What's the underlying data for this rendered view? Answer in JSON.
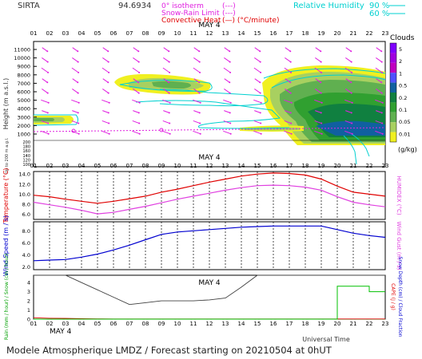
{
  "header": {
    "site": "SIRTA",
    "coord": "94.6934",
    "legend": [
      {
        "label": "0° isotherm",
        "sample": "(---)",
        "color": "#e020e0"
      },
      {
        "label": "Snow-Rain Limit",
        "sample": "(---)",
        "color": "#e020e0"
      },
      {
        "label": "Convective Heat",
        "sample": "(—)  (°C/minute)",
        "color": "#e00000"
      }
    ],
    "rh_label": "Relative Humidity",
    "rh_levels": [
      "90 %",
      "60 %"
    ],
    "rh_color": "#00d0d0"
  },
  "hours": [
    "01",
    "02",
    "03",
    "04",
    "05",
    "06",
    "07",
    "08",
    "09",
    "10",
    "11",
    "12",
    "13",
    "14",
    "15",
    "16",
    "17",
    "18",
    "19",
    "20",
    "21",
    "22",
    "23"
  ],
  "date_label": "MAY  4",
  "panel1": {
    "ylabel": "Height  (m a.s.l.)",
    "ylabel_low": "Up to 200 m a.g.l.",
    "yticks_high": [
      "11000",
      "10000",
      "9000",
      "8000",
      "7000",
      "6000",
      "5000",
      "4000",
      "3000",
      "2000",
      "1000"
    ],
    "yticks_low": [
      "200",
      "180",
      "160",
      "140",
      "120",
      "100"
    ],
    "clouds_title": "Clouds",
    "clouds_units": "(g/kg)",
    "cloud_scale": [
      "5",
      "2",
      "1",
      "0.5",
      "0.2",
      "0.1",
      "0.05",
      "0.01"
    ],
    "cloud_colors": [
      "#8000ff",
      "#a000e0",
      "#c000c0",
      "#5050ff",
      "#1060a0",
      "#108040",
      "#30a030",
      "#60b050",
      "#a8d060",
      "#f0f020"
    ]
  },
  "panel2": {
    "ylabel": "Temperature (°C)",
    "ylabel_right": "HUMIDEX (°C)",
    "yticks": [
      "14.0",
      "12.0",
      "10.0",
      "8.0",
      "6.0"
    ]
  },
  "panel3": {
    "ylabel": "Wind Speed (m / s)",
    "ylabel_right": "Wind Gust (m / s)",
    "yticks": [
      "8.0",
      "6.0",
      "4.0",
      "2.0"
    ]
  },
  "panel4": {
    "ylabel": "Rain (mm / hour) / Snow (cm / hour)",
    "ylabel_right1": "CAPE (J / g)",
    "ylabel_right2": "Snow Depth (cm) / Cloud Fraction",
    "yticks": [
      "4",
      "3",
      "2",
      "1",
      "0"
    ]
  },
  "x_title": "Universal Time",
  "footer": "Modele Atmospherique LMDZ / Forecast starting on 20210504 at 0hUT",
  "chart_data": [
    {
      "type": "line",
      "title": "Temperature / HUMIDEX",
      "x": [
        1,
        2,
        3,
        4,
        5,
        6,
        7,
        8,
        9,
        10,
        11,
        12,
        13,
        14,
        15,
        16,
        17,
        18,
        19,
        20,
        21,
        22,
        23
      ],
      "series": [
        {
          "name": "Temperature",
          "color": "#e00000",
          "values": [
            9.8,
            9.5,
            9.0,
            8.6,
            8.2,
            8.6,
            9.1,
            9.6,
            10.4,
            11.0,
            11.7,
            12.4,
            13.0,
            13.6,
            14.0,
            14.2,
            14.1,
            13.8,
            13.0,
            11.6,
            10.4,
            10.0,
            9.6
          ]
        },
        {
          "name": "HUMIDEX",
          "color": "#e040e0",
          "values": [
            8.4,
            7.9,
            7.4,
            6.8,
            6.1,
            6.4,
            7.0,
            7.6,
            8.3,
            9.0,
            9.6,
            10.2,
            10.8,
            11.3,
            11.7,
            11.8,
            11.7,
            11.4,
            10.8,
            9.5,
            8.4,
            7.9,
            7.5
          ]
        }
      ],
      "ylim": [
        5,
        14.5
      ]
    },
    {
      "type": "line",
      "title": "Wind Speed / Wind Gust",
      "x": [
        1,
        2,
        3,
        4,
        5,
        6,
        7,
        8,
        9,
        10,
        11,
        12,
        13,
        14,
        15,
        16,
        17,
        18,
        19,
        20,
        21,
        22,
        23
      ],
      "series": [
        {
          "name": "Wind Speed",
          "color": "#0000d0",
          "values": [
            3.0,
            3.1,
            3.2,
            3.6,
            4.1,
            4.8,
            5.6,
            6.5,
            7.4,
            7.8,
            8.0,
            8.2,
            8.4,
            8.6,
            8.7,
            8.8,
            8.8,
            8.8,
            8.8,
            8.2,
            7.6,
            7.2,
            6.9
          ]
        }
      ],
      "ylim": [
        1.5,
        9.5
      ]
    },
    {
      "type": "line",
      "title": "Rain / CAPE / Cloud Fraction",
      "x": [
        1,
        2,
        3,
        4,
        5,
        6,
        7,
        8,
        9,
        10,
        11,
        12,
        13,
        14,
        15,
        16,
        17,
        18,
        19,
        20,
        21,
        22,
        23
      ],
      "series": [
        {
          "name": "Rain",
          "color": "#00a000",
          "values": [
            0,
            0,
            0,
            0,
            0,
            0,
            0,
            0,
            0,
            0,
            0,
            0,
            0,
            0,
            0,
            0,
            0,
            0,
            0,
            0,
            0,
            0,
            0
          ]
        },
        {
          "name": "CAPE",
          "color": "#e00000",
          "values": [
            0.15,
            0.1,
            0.08,
            0.05,
            0.03,
            0.02,
            0.02,
            0.02,
            0.02,
            0.02,
            0.02,
            0.02,
            0.02,
            0.02,
            0.02,
            0.02,
            0.02,
            0.02,
            0.02,
            0.02,
            0.02,
            0.02,
            0.02
          ]
        },
        {
          "name": "Cloud Fraction",
          "color": "#404040",
          "values": [
            4.8,
            4.8,
            4.8,
            4.0,
            3.2,
            2.4,
            1.6,
            1.8,
            2.0,
            2.0,
            2.0,
            2.1,
            2.3,
            3.5,
            4.8,
            4.8,
            4.8,
            4.8,
            4.8,
            4.8,
            4.8,
            4.8,
            4.8
          ]
        },
        {
          "name": "Snow Depth",
          "color": "#00c000",
          "values": [
            0,
            0,
            0,
            0,
            0,
            0,
            0,
            0,
            0,
            0,
            0,
            0,
            0,
            0,
            0,
            0,
            0,
            0,
            0,
            3.6,
            3.6,
            3.0,
            3.0
          ]
        }
      ],
      "ylim": [
        0,
        4.8
      ]
    }
  ]
}
